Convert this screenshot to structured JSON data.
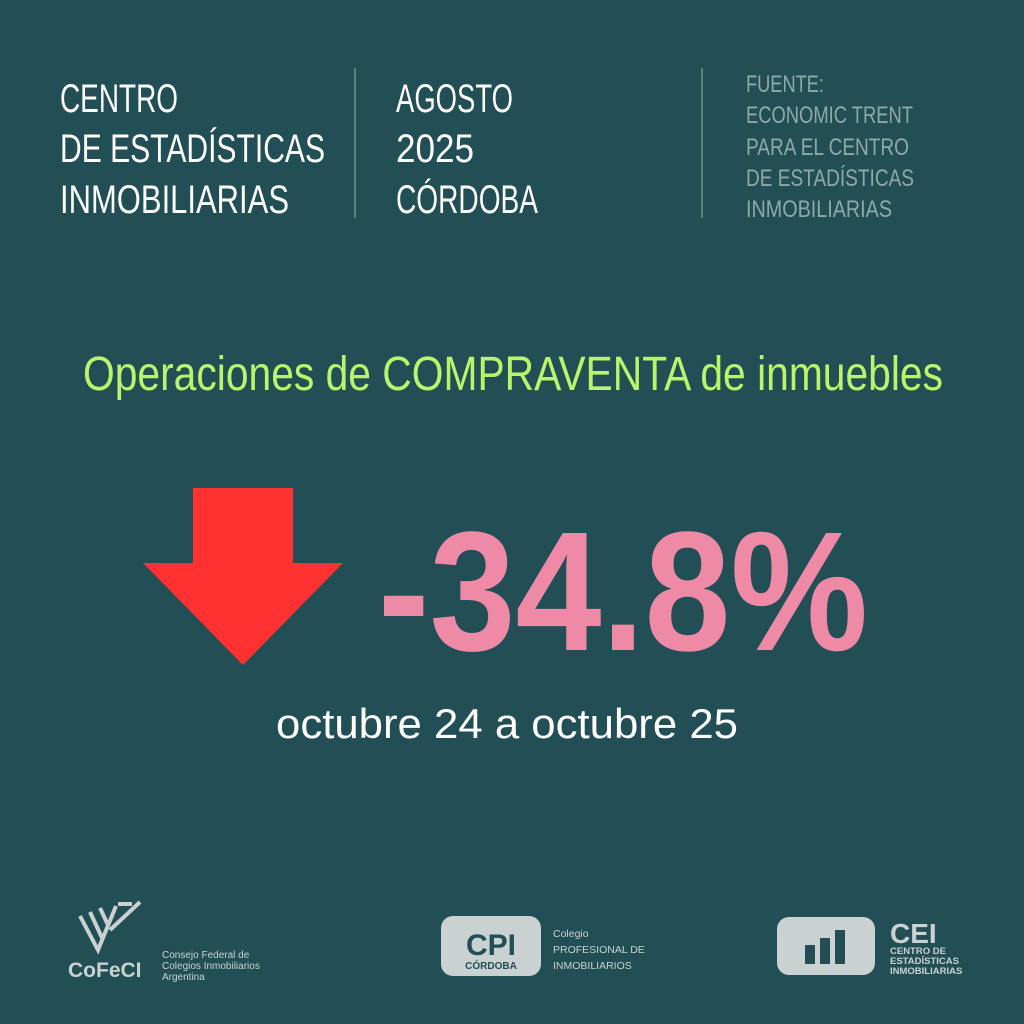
{
  "header": {
    "columns": [
      {
        "lines": [
          "CENTRO",
          "DE ESTADÍSTICAS",
          "INMOBILIARIAS"
        ]
      },
      {
        "lines": [
          "AGOSTO",
          "2025",
          "CÓRDOBA"
        ]
      },
      {
        "lines": [
          "FUENTE:",
          "ECONOMIC TRENT",
          "PARA EL CENTRO",
          "DE ESTADÍSTICAS",
          "INMOBILIARIAS"
        ]
      }
    ]
  },
  "headline": "Operaciones de COMPRAVENTA de inmuebles",
  "change": "-34.8%",
  "period": "octubre 24 a octubre 25",
  "logos": {
    "cofeci": {
      "mark": "CoFeCI",
      "caption": [
        "Consejo Federal de",
        "Colegios Inmobiliarios",
        "Argentina"
      ]
    },
    "cpi": {
      "mark": "CPI",
      "sub": "CÓRDOBA",
      "caption": [
        "Colegio",
        "PROFESIONAL DE",
        "INMOBILIARIOS"
      ]
    },
    "cei": {
      "mark": "CEI",
      "caption": [
        "CENTRO DE",
        "ESTADÍSTICAS",
        "INMOBILIARIAS"
      ]
    }
  }
}
